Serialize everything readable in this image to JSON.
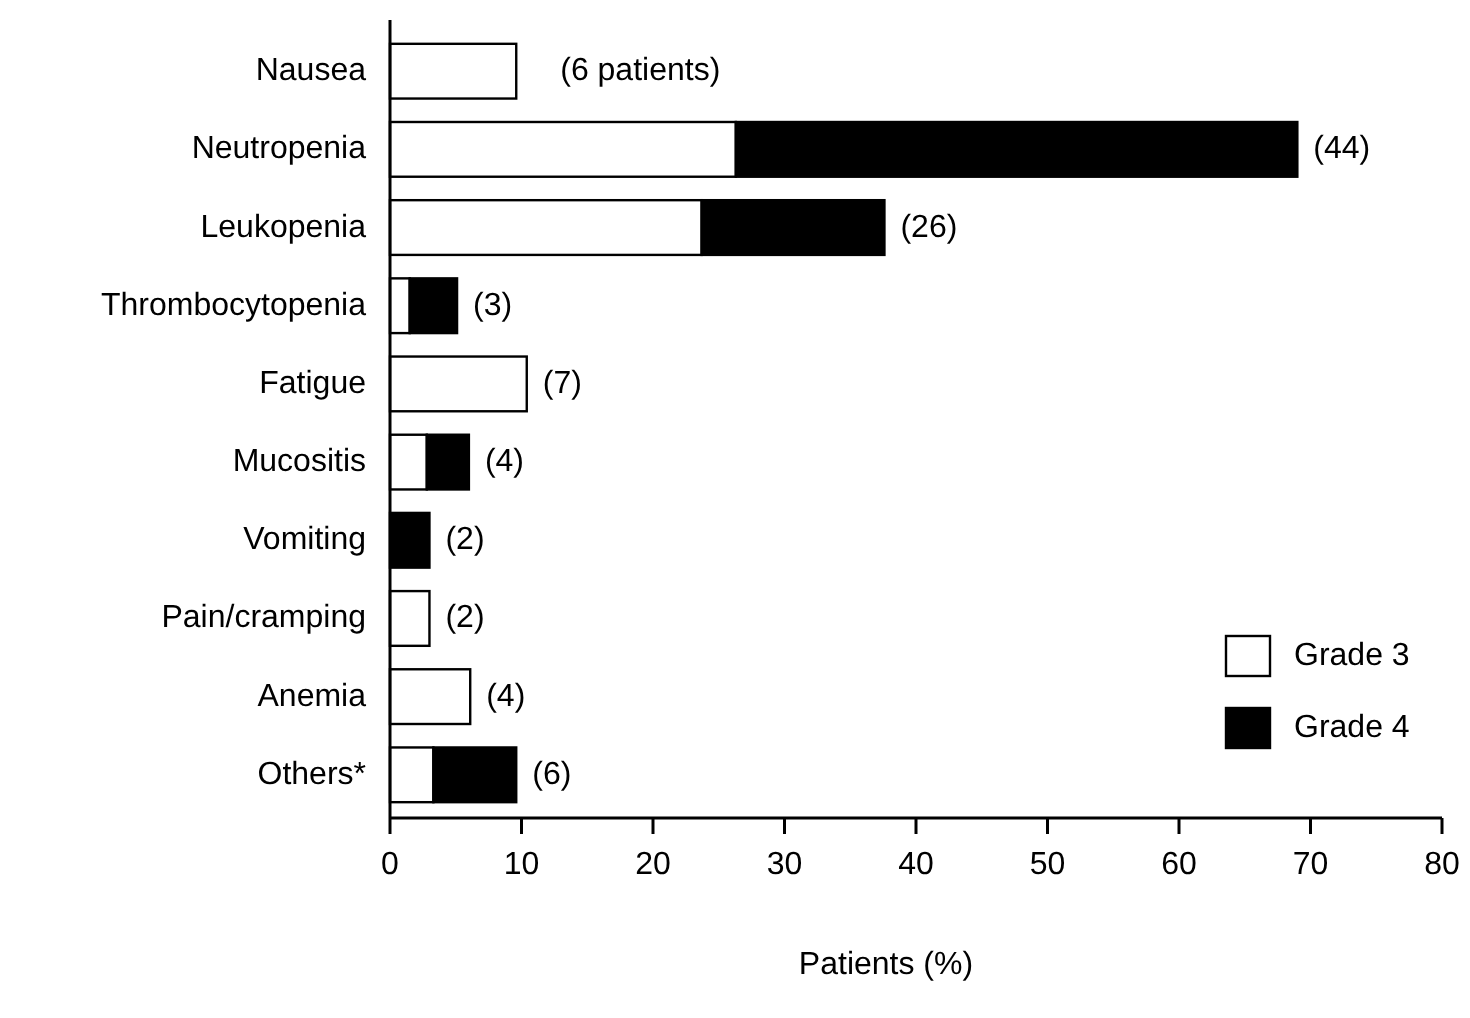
{
  "chart_data": {
    "type": "bar",
    "orientation": "horizontal",
    "stacked": true,
    "xlabel": "Patients (%)",
    "categories": [
      "Nausea",
      "Neutropenia",
      "Leukopenia",
      "Thrombocytopenia",
      "Fatigue",
      "Mucositis",
      "Vomiting",
      "Pain/cramping",
      "Anemia",
      "Others*"
    ],
    "series": [
      {
        "name": "Grade 3",
        "color": "#ffffff",
        "values": [
          9.6,
          26.3,
          23.7,
          1.5,
          10.4,
          2.8,
          0,
          3.0,
          6.1,
          3.3
        ]
      },
      {
        "name": "Grade 4",
        "color": "#000000",
        "values": [
          0,
          42.7,
          13.9,
          3.6,
          0,
          3.2,
          3.0,
          0,
          0,
          6.3
        ]
      }
    ],
    "annotations": [
      {
        "text": "(6 patients)",
        "x": 9.6,
        "y": "Nausea"
      },
      {
        "text": "(44)",
        "x": 69,
        "y": "Neutropenia"
      },
      {
        "text": "(26)",
        "x": 37.6,
        "y": "Leukopenia"
      },
      {
        "text": "(3)",
        "x": 5.1,
        "y": "Thrombocytopenia"
      },
      {
        "text": "(7)",
        "x": 10.4,
        "y": "Fatigue"
      },
      {
        "text": "(4)",
        "x": 6.0,
        "y": "Mucositis"
      },
      {
        "text": "(2)",
        "x": 3.0,
        "y": "Vomiting"
      },
      {
        "text": "(2)",
        "x": 3.0,
        "y": "Pain/cramping"
      },
      {
        "text": "(4)",
        "x": 6.1,
        "y": "Anemia"
      },
      {
        "text": "(6)",
        "x": 9.6,
        "y": "Others*"
      }
    ],
    "xlim": [
      0,
      80
    ],
    "xticks": [
      0,
      10,
      20,
      30,
      40,
      50,
      60,
      70,
      80
    ],
    "grid": false,
    "legend": "bottom right"
  }
}
